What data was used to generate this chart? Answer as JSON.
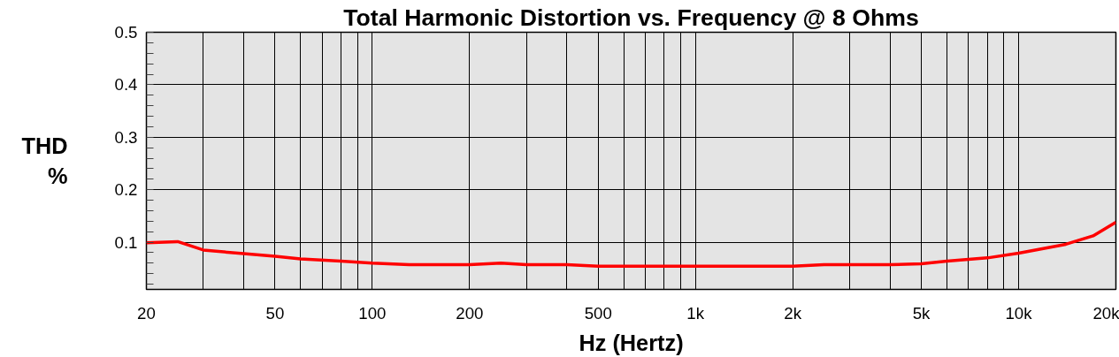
{
  "chart_data": {
    "type": "line",
    "title": "Total Harmonic Distortion vs. Frequency @ 8 Ohms",
    "xlabel": "Hz (Hertz)",
    "ylabel": "THD\n%",
    "log": "x",
    "grid": true,
    "marker": "none",
    "line_style": "solid",
    "x": [
      20,
      25,
      30,
      40,
      50,
      60,
      80,
      100,
      130,
      200,
      250,
      300,
      400,
      500,
      1000,
      2000,
      2500,
      4000,
      5000,
      6000,
      8000,
      10000,
      14000,
      17000,
      20000
    ],
    "series": [
      {
        "color": "#ff0000",
        "values": [
          0.099,
          0.101,
          0.085,
          0.078,
          0.073,
          0.068,
          0.064,
          0.06,
          0.057,
          0.057,
          0.06,
          0.057,
          0.057,
          0.054,
          0.054,
          0.054,
          0.057,
          0.057,
          0.059,
          0.064,
          0.07,
          0.079,
          0.096,
          0.112,
          0.138
        ]
      }
    ],
    "xlim": [
      20,
      20000
    ],
    "ylim": [
      0.01,
      0.5
    ],
    "xticks": [
      20,
      {
        "value": 30,
        "label": null
      },
      {
        "value": 40,
        "label": null
      },
      50,
      {
        "value": 60,
        "label": null
      },
      {
        "value": 70,
        "label": null
      },
      {
        "value": 80,
        "label": null
      },
      {
        "value": 90,
        "label": null
      },
      100,
      200,
      {
        "value": 300,
        "label": null
      },
      {
        "value": 400,
        "label": null
      },
      500,
      {
        "value": 600,
        "label": null
      },
      {
        "value": 700,
        "label": null
      },
      {
        "value": 800,
        "label": null
      },
      {
        "value": 900,
        "label": null
      },
      {
        "value": 1000,
        "label": "1k"
      },
      {
        "value": 2000,
        "label": "2k"
      },
      {
        "value": 3000,
        "label": null
      },
      {
        "value": 4000,
        "label": null
      },
      {
        "value": 5000,
        "label": "5k"
      },
      {
        "value": 6000,
        "label": null
      },
      {
        "value": 7000,
        "label": null
      },
      {
        "value": 8000,
        "label": null
      },
      {
        "value": 9000,
        "label": null
      },
      {
        "value": 10000,
        "label": "10k"
      },
      {
        "value": 20000,
        "label": "20k"
      }
    ],
    "yticks": [
      0.1,
      0.2,
      0.3,
      0.4,
      0.5
    ]
  }
}
